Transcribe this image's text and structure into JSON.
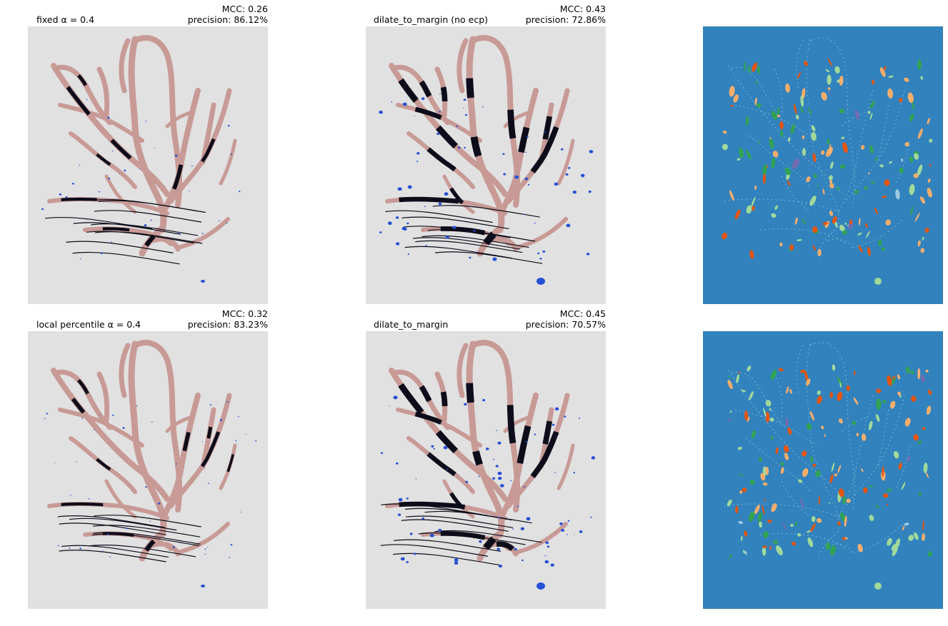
{
  "panels": [
    {
      "title_left": "fixed α = 0.4",
      "mcc": "MCC: 0.26",
      "precision": "precision: 86.12%"
    },
    {
      "title_left": "dilate_to_margin (no ecp)",
      "mcc": "MCC: 0.43",
      "precision": "precision: 72.86%"
    },
    {
      "title_left": "local percentile α = 0.4",
      "mcc": "MCC: 0.32",
      "precision": "precision: 83.23%"
    },
    {
      "title_left": "dilate_to_margin",
      "mcc": "MCC: 0.45",
      "precision": "precision: 70.57%"
    }
  ],
  "colors": {
    "background_gray": "#e1e1e1",
    "vessel_pink": "#c89a96",
    "dark_segment": "#0c0c1a",
    "blue_blob": "#2650d6",
    "label_bg_blue": "#3182bd",
    "label_orange": "#e6550d",
    "label_light_orange": "#fdae6b",
    "label_green": "#31a354",
    "label_light_green": "#a1d99b",
    "label_light_blue": "#9ecae1",
    "label_purple": "#756bb1"
  }
}
